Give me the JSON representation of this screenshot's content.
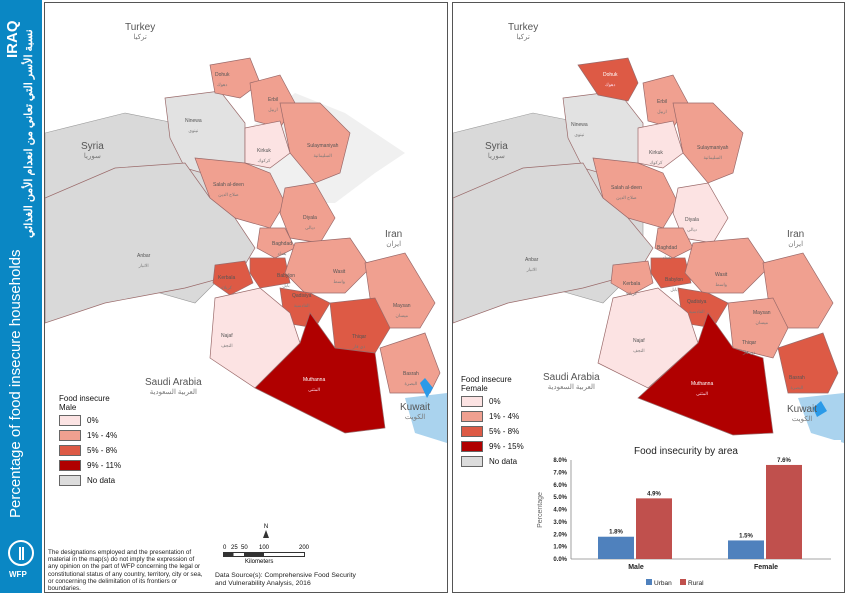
{
  "sidebar": {
    "title_main": "IRAQ",
    "title_arabic": "نسبة الأسر التي تعاني من انعدام الأمن الغذائي",
    "subtitle": "Percentage of food insecure households",
    "logo_text": "WFP"
  },
  "countries": {
    "turkey": "Turkey",
    "turkey_ar": "تركيا",
    "syria": "Syria",
    "syria_ar": "سوريا",
    "iran": "Iran",
    "iran_ar": "ايران",
    "saudi": "Saudi Arabia",
    "saudi_ar": "العربية السعودية",
    "kuwait": "Kuwait",
    "kuwait_ar": "الكويت"
  },
  "governorates": {
    "dohuk": "Dohuk",
    "dohuk_ar": "دهوك",
    "erbil": "Erbil",
    "erbil_ar": "اربيل",
    "ninewa": "Ninewa",
    "ninewa_ar": "نينوى",
    "kirkuk": "Kirkuk",
    "kirkuk_ar": "كركوك",
    "sulaymaniyah": "Sulaymaniyah",
    "sulaymaniyah_ar": "السليمانية",
    "salahaldeen": "Salah al-deen",
    "salahaldeen_ar": "صلاح الدين",
    "diyala": "Diyala",
    "diyala_ar": "ديالى",
    "anbar": "Anbar",
    "anbar_ar": "الانبار",
    "baghdad": "Baghdad",
    "baghdad_ar": "بغداد",
    "kerbala": "Kerbala",
    "kerbala_ar": "كربلاء",
    "babylon": "Babylon",
    "babylon_ar": "بابل",
    "wasit": "Wasit",
    "wasit_ar": "واسط",
    "qadisiya": "Qadisiya",
    "qadisiya_ar": "القادسية",
    "najaf": "Najaf",
    "najaf_ar": "النجف",
    "maysan": "Maysan",
    "maysan_ar": "ميسان",
    "thiqar": "Thiqar",
    "thiqar_ar": "ذي قار",
    "muthanna": "Muthanna",
    "muthanna_ar": "المثنى",
    "basrah": "Basrah",
    "basrah_ar": "البصرة"
  },
  "legend_male": {
    "title": "Food insecure",
    "subtitle": "Male",
    "items": [
      {
        "label": "0%",
        "color": "#fce3e3"
      },
      {
        "label": "1% - 4%",
        "color": "#f0a090"
      },
      {
        "label": "5% - 8%",
        "color": "#dd5a45"
      },
      {
        "label": "9% - 11%",
        "color": "#b00000"
      },
      {
        "label": "No data",
        "color": "#dcdcdc"
      }
    ]
  },
  "legend_female": {
    "title": "Food insecure",
    "subtitle": "Female",
    "items": [
      {
        "label": "0%",
        "color": "#fce3e3"
      },
      {
        "label": "1% - 4%",
        "color": "#f0a090"
      },
      {
        "label": "5% - 8%",
        "color": "#dd5a45"
      },
      {
        "label": "9% - 15%",
        "color": "#b00000"
      },
      {
        "label": "No data",
        "color": "#dcdcdc"
      }
    ]
  },
  "scale": {
    "north": "N",
    "ticks": [
      "0",
      "25",
      "50",
      "100",
      "200"
    ],
    "unit": "Kilometers"
  },
  "disclaimer": "The designations employed and the presentation of material in the map(s) do not imply the expression of any opinion on the part of WFP concerning the legal or constitutional status of any country, territory, city or sea, or concerning the delimitation of its frontiers or boundaries.",
  "source_line1": "Data Source(s): Comprehensive Food Security",
  "source_line2": "and Vulnerability Analysis, 2016",
  "chart_data": {
    "type": "bar",
    "title": "Food insecurity by area",
    "ylabel": "Percentage",
    "xlabel": "",
    "categories": [
      "Male",
      "Female"
    ],
    "series": [
      {
        "name": "Urban",
        "values": [
          1.8,
          1.5
        ],
        "labels": [
          "1.8%",
          "1.5%"
        ],
        "color": "#4f81bd"
      },
      {
        "name": "Rural",
        "values": [
          4.9,
          7.6
        ],
        "labels": [
          "4.9%",
          "7.6%"
        ],
        "color": "#c0504d"
      }
    ],
    "ylim": [
      0,
      8
    ],
    "yticks": [
      "0.0%",
      "1.0%",
      "2.0%",
      "3.0%",
      "4.0%",
      "5.0%",
      "6.0%",
      "7.0%",
      "8.0%"
    ],
    "grid": false,
    "legend": "bottom"
  }
}
